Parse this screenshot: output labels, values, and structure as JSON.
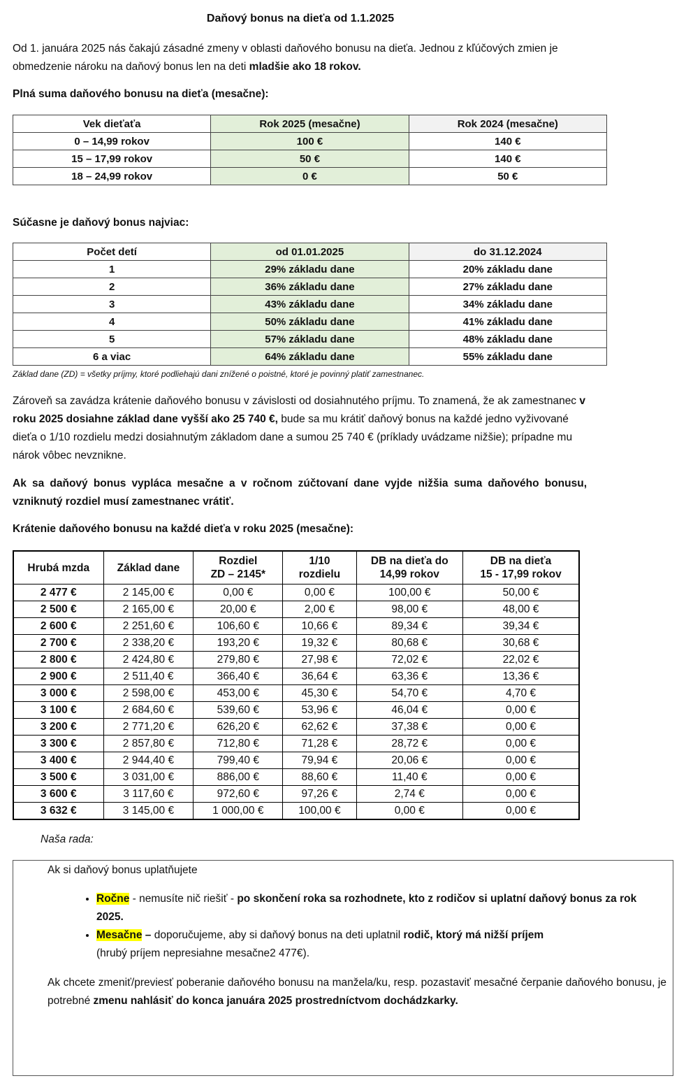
{
  "title": "Daňový bonus na dieťa od 1.1.2025",
  "intro": {
    "text": "Od 1. januára 2025 nás čakajú zásadné zmeny v oblasti daňového bonusu na dieťa. Jednou z kľúčových zmien je obmedzenie nároku na daňový bonus len na deti ",
    "bold": "mladšie ako 18 rokov."
  },
  "section1_heading": "Plná suma daňového bonusu na dieťa (mesačne):",
  "table1": {
    "headers": [
      "Vek dieťaťa",
      "Rok 2025 (mesačne)",
      "Rok 2024 (mesačne)"
    ],
    "rows": [
      [
        "0 – 14,99 rokov",
        "100 €",
        "140 €"
      ],
      [
        "15 – 17,99 rokov",
        "50 €",
        "140 €"
      ],
      [
        "18 – 24,99 rokov",
        "0 €",
        "50 €"
      ]
    ]
  },
  "section2_heading": "Súčasne je daňový bonus najviac:",
  "table2": {
    "headers": [
      "Počet detí",
      "od 01.01.2025",
      "do 31.12.2024"
    ],
    "rows": [
      [
        "1",
        "29% základu dane",
        "20% základu dane"
      ],
      [
        "2",
        "36% základu dane",
        "27% základu dane"
      ],
      [
        "3",
        "43% základu dane",
        "34% základu dane"
      ],
      [
        "4",
        "50% základu dane",
        "41% základu dane"
      ],
      [
        "5",
        "57% základu dane",
        "48% základu dane"
      ],
      [
        "6 a viac",
        "64% základu dane",
        "55% základu dane"
      ]
    ]
  },
  "note": "Základ dane (ZD) = všetky príjmy, ktoré podliehajú dani  znížené o poistné, ktoré je povinný platiť zamestnanec.",
  "para2": {
    "a": "Zároveň sa zavádza krátenie daňového bonusu v závislosti od dosiahnutého príjmu. To znamená, že ak zamestnanec ",
    "b": "v roku 2025 dosiahne základ dane vyšší ako 25 740 €,",
    "c": " bude sa mu krátiť daňový bonus na každé jedno vyživované dieťa o 1/10 rozdielu medzi dosiahnutým základom dane a sumou 25 740 € (príklady uvádzame nižšie); prípadne mu nárok vôbec nevznikne."
  },
  "para3": "Ak sa daňový bonus vypláca mesačne a v ročnom zúčtovaní dane vyjde nižšia suma daňového bonusu, vzniknutý rozdiel musí zamestnanec vrátiť.",
  "section3_heading": "Krátenie daňového bonusu na každé dieťa v roku 2025 (mesačne):",
  "table3": {
    "headers": [
      [
        "Hrubá mzda",
        ""
      ],
      [
        "Základ dane",
        ""
      ],
      [
        "Rozdiel",
        "ZD – 2145*"
      ],
      [
        "1/10",
        "rozdielu"
      ],
      [
        "DB na dieťa do",
        "14,99 rokov"
      ],
      [
        "DB na dieťa",
        "15 - 17,99 rokov"
      ]
    ],
    "rows": [
      [
        "2 477 €",
        "2 145,00 €",
        "0,00 €",
        "0,00 €",
        "100,00 €",
        "50,00 €"
      ],
      [
        "2 500 €",
        "2 165,00 €",
        "20,00 €",
        "2,00 €",
        "98,00 €",
        "48,00 €"
      ],
      [
        "2 600 €",
        "2 251,60 €",
        "106,60 €",
        "10,66 €",
        "89,34 €",
        "39,34 €"
      ],
      [
        "2 700 €",
        "2 338,20 €",
        "193,20 €",
        "19,32 €",
        "80,68 €",
        "30,68 €"
      ],
      [
        "2 800 €",
        "2 424,80 €",
        "279,80 €",
        "27,98 €",
        "72,02 €",
        "22,02 €"
      ],
      [
        "2 900 €",
        "2 511,40 €",
        "366,40 €",
        "36,64 €",
        "63,36 €",
        "13,36 €"
      ],
      [
        "3 000 €",
        "2 598,00 €",
        "453,00 €",
        "45,30 €",
        "54,70 €",
        "4,70 €"
      ],
      [
        "3 100 €",
        "2 684,60 €",
        "539,60 €",
        "53,96 €",
        "46,04 €",
        "0,00 €"
      ],
      [
        "3 200 €",
        "2 771,20 €",
        "626,20 €",
        "62,62 €",
        "37,38 €",
        "0,00 €"
      ],
      [
        "3 300 €",
        "2 857,80 €",
        "712,80 €",
        "71,28 €",
        "28,72 €",
        "0,00 €"
      ],
      [
        "3 400 €",
        "2 944,40 €",
        "799,40 €",
        "79,94 €",
        "20,06 €",
        "0,00 €"
      ],
      [
        "3 500 €",
        "3 031,00 €",
        "886,00 €",
        "88,60 €",
        "11,40 €",
        "0,00 €"
      ],
      [
        "3 600 €",
        "3 117,60 €",
        "972,60 €",
        "97,26 €",
        "2,74 €",
        "0,00 €"
      ],
      [
        "3 632 €",
        "3 145,00 €",
        "1 000,00 €",
        "100,00 €",
        "0,00 €",
        "0,00 €"
      ]
    ]
  },
  "advice_label": "Naša rada:",
  "advice": {
    "lead": "Ak si daňový bonus uplatňujete",
    "b1": {
      "hl": "Ročne",
      "a": " - nemusíte nič riešiť - ",
      "b": "po skončení roka sa rozhodnete, kto z rodičov si uplatní daňový bonus za rok 2025."
    },
    "b2": {
      "hl": "Mesačne",
      "a": " – ",
      "a2": "doporučujeme, aby si daňový bonus na deti uplatnil ",
      "b": "rodič, ktorý má nižší príjem",
      "c": "(hrubý príjem nepresiahne mesačne2 477€)."
    },
    "final": {
      "a": "Ak chcete zmeniť/previesť poberanie daňového bonusu na manžela/ku, resp. pozastaviť mesačné čerpanie daňového bonusu, je potrebné ",
      "b": "zmenu nahlásiť do konca januára 2025 prostredníctvom dochádzkarky."
    }
  },
  "colors": {
    "green_column": "#e2efd9",
    "grey_column": "#f2f2f2",
    "highlight": "#ffff00"
  }
}
